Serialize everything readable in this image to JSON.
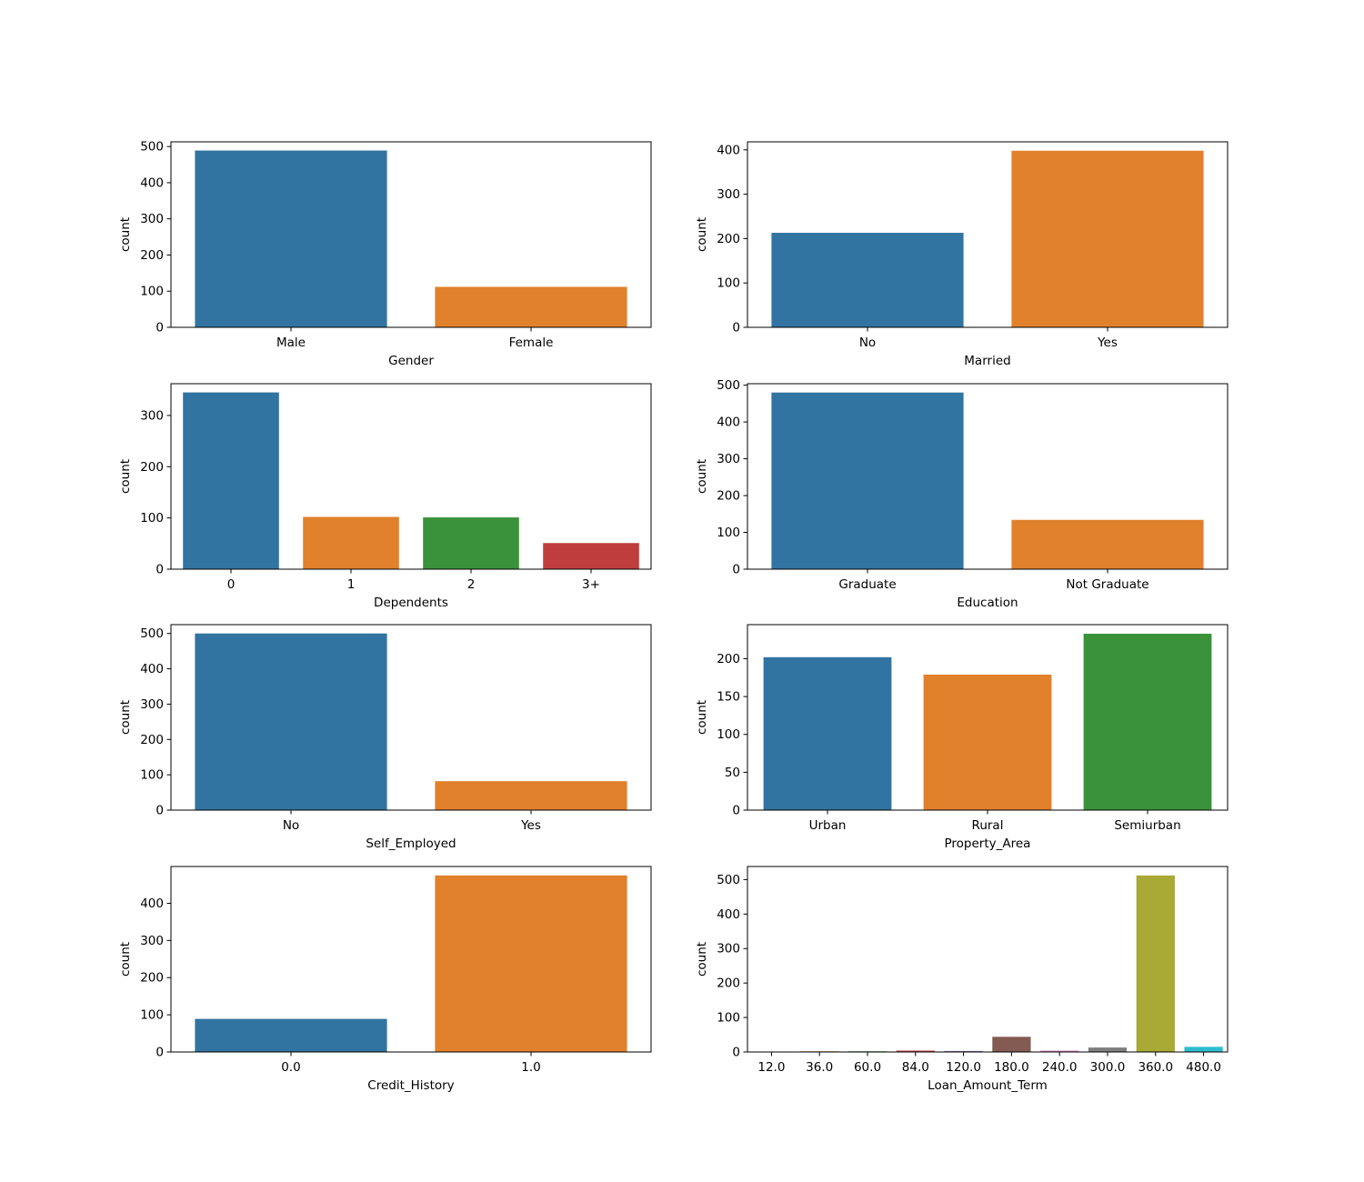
{
  "palette": [
    "#3274a1",
    "#e1812c",
    "#3a923a",
    "#c03d3e",
    "#9372b2",
    "#845b53",
    "#d684bd",
    "#7f7f7f",
    "#a9aa35",
    "#2ebdcf"
  ],
  "chart_data": [
    {
      "type": "bar",
      "xlabel": "Gender",
      "ylabel": "count",
      "categories": [
        "Male",
        "Female"
      ],
      "values": [
        489,
        112
      ],
      "ylim": [
        0,
        513
      ],
      "yticks": [
        0,
        100,
        200,
        300,
        400,
        500
      ]
    },
    {
      "type": "bar",
      "xlabel": "Married",
      "ylabel": "count",
      "categories": [
        "No",
        "Yes"
      ],
      "values": [
        213,
        398
      ],
      "ylim": [
        0,
        418
      ],
      "yticks": [
        0,
        100,
        200,
        300,
        400
      ]
    },
    {
      "type": "bar",
      "xlabel": "Dependents",
      "ylabel": "count",
      "categories": [
        "0",
        "1",
        "2",
        "3+"
      ],
      "values": [
        345,
        102,
        101,
        51
      ],
      "ylim": [
        0,
        362
      ],
      "yticks": [
        0,
        100,
        200,
        300
      ]
    },
    {
      "type": "bar",
      "xlabel": "Education",
      "ylabel": "count",
      "categories": [
        "Graduate",
        "Not Graduate"
      ],
      "values": [
        480,
        134
      ],
      "ylim": [
        0,
        504
      ],
      "yticks": [
        0,
        100,
        200,
        300,
        400,
        500
      ]
    },
    {
      "type": "bar",
      "xlabel": "Self_Employed",
      "ylabel": "count",
      "categories": [
        "No",
        "Yes"
      ],
      "values": [
        500,
        82
      ],
      "ylim": [
        0,
        525
      ],
      "yticks": [
        0,
        100,
        200,
        300,
        400,
        500
      ]
    },
    {
      "type": "bar",
      "xlabel": "Property_Area",
      "ylabel": "count",
      "categories": [
        "Urban",
        "Rural",
        "Semiurban"
      ],
      "values": [
        202,
        179,
        233
      ],
      "ylim": [
        0,
        245
      ],
      "yticks": [
        0,
        50,
        100,
        150,
        200
      ]
    },
    {
      "type": "bar",
      "xlabel": "Credit_History",
      "ylabel": "count",
      "categories": [
        "0.0",
        "1.0"
      ],
      "values": [
        89,
        475
      ],
      "ylim": [
        0,
        499
      ],
      "yticks": [
        0,
        100,
        200,
        300,
        400
      ]
    },
    {
      "type": "bar",
      "xlabel": "Loan_Amount_Term",
      "ylabel": "count",
      "categories": [
        "12.0",
        "36.0",
        "60.0",
        "84.0",
        "120.0",
        "180.0",
        "240.0",
        "300.0",
        "360.0",
        "480.0"
      ],
      "values": [
        1,
        2,
        2,
        4,
        3,
        44,
        4,
        13,
        512,
        15
      ],
      "ylim": [
        0,
        538
      ],
      "yticks": [
        0,
        100,
        200,
        300,
        400,
        500
      ]
    }
  ]
}
